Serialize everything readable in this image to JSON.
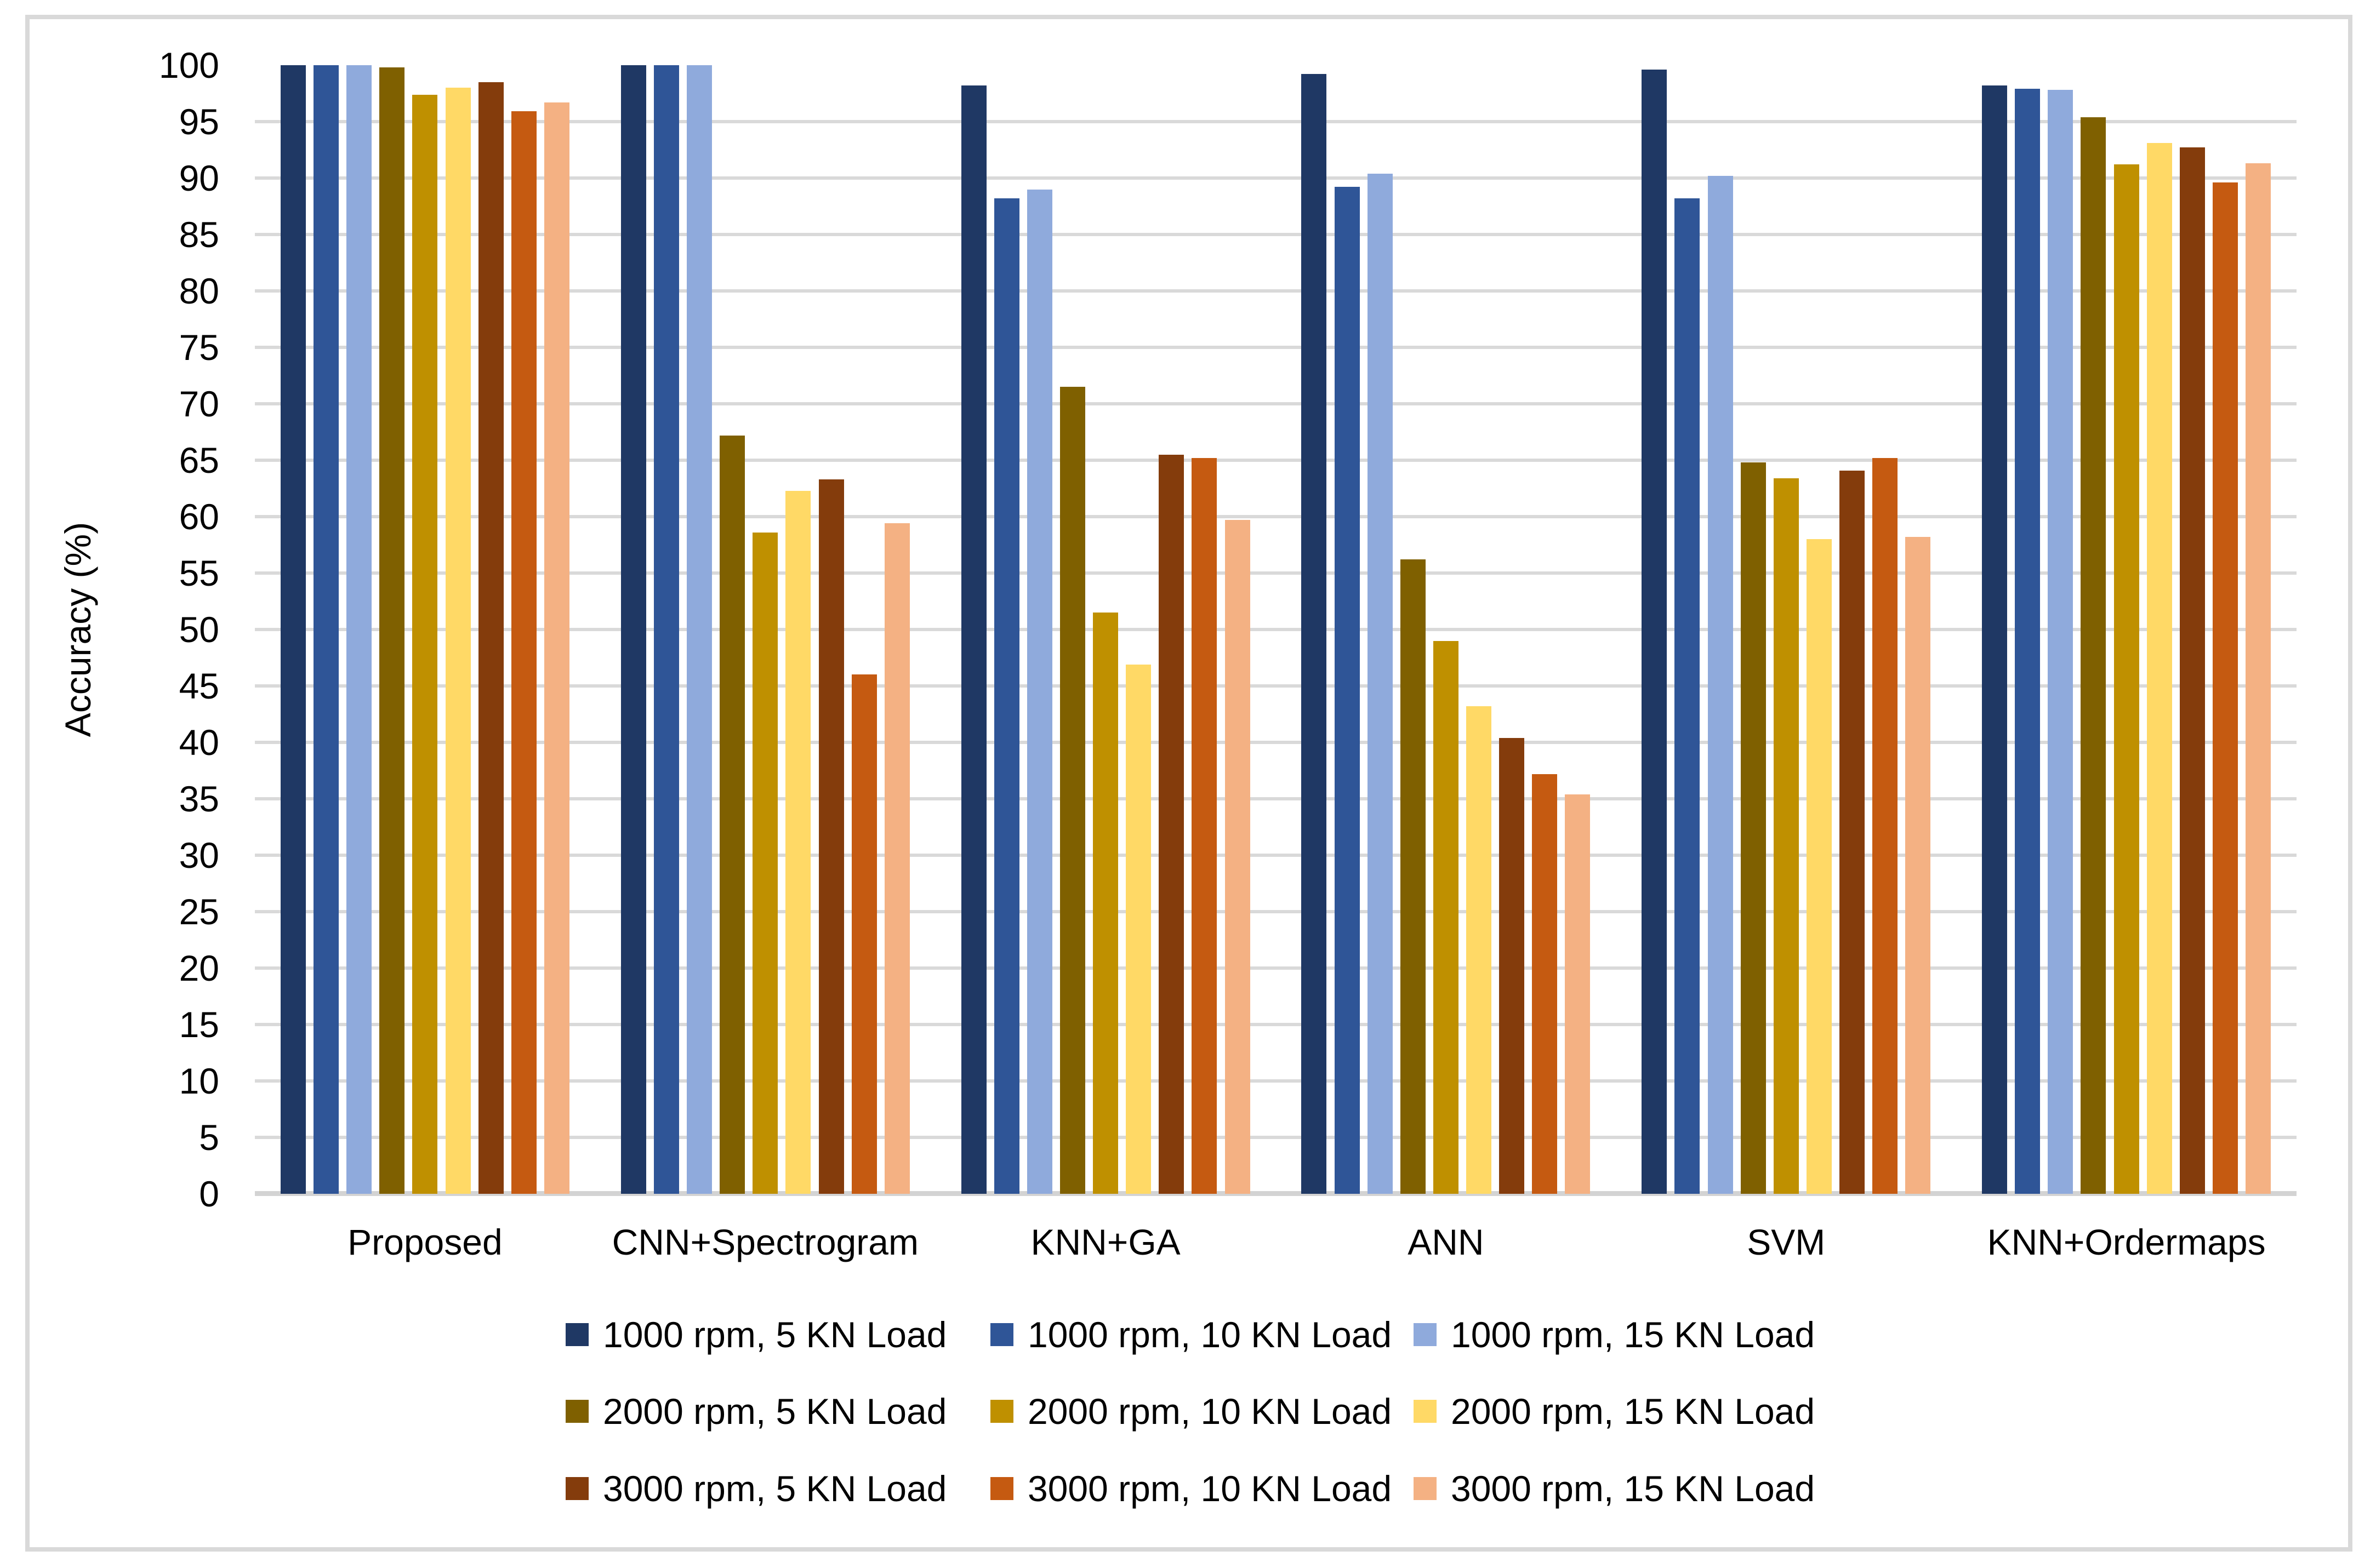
{
  "chart_data": {
    "type": "bar",
    "title": "",
    "xlabel": "",
    "ylabel": "Accuracy (%)",
    "ylim": [
      0,
      100
    ],
    "ytick_step": 5,
    "y_ticks": [
      0,
      5,
      10,
      15,
      20,
      25,
      30,
      35,
      40,
      45,
      50,
      55,
      60,
      65,
      70,
      75,
      80,
      85,
      90,
      95,
      100
    ],
    "grid": "horizontal major gridlines every 5 units from 0 to 95; no visible line at 100",
    "legend_position": "bottom, 3 columns x 3 rows",
    "categories": [
      "Proposed",
      "CNN+Spectrogram",
      "KNN+GA",
      "ANN",
      "SVM",
      "KNN+Ordermaps"
    ],
    "series": [
      {
        "name": "1000 rpm, 5 KN Load",
        "color": "#1f3864",
        "values": [
          100.0,
          100.0,
          98.2,
          99.2,
          99.6,
          98.2
        ]
      },
      {
        "name": "1000 rpm, 10 KN Load",
        "color": "#2f5597",
        "values": [
          100.0,
          100.0,
          88.2,
          89.2,
          88.2,
          97.9
        ]
      },
      {
        "name": "1000 rpm, 15 KN Load",
        "color": "#8faadc",
        "values": [
          100.0,
          100.0,
          89.0,
          90.4,
          90.2,
          97.8
        ]
      },
      {
        "name": "2000 rpm, 5 KN Load",
        "color": "#7f6000",
        "values": [
          99.8,
          67.2,
          71.5,
          56.2,
          64.8,
          95.4
        ]
      },
      {
        "name": "2000 rpm, 10 KN Load",
        "color": "#bf9000",
        "values": [
          97.4,
          58.6,
          51.5,
          49.0,
          63.4,
          91.2
        ]
      },
      {
        "name": "2000 rpm, 15 KN Load",
        "color": "#ffd966",
        "values": [
          98.0,
          62.3,
          46.9,
          43.2,
          58.0,
          93.1
        ]
      },
      {
        "name": "3000 rpm, 5 KN Load",
        "color": "#843c0c",
        "values": [
          98.5,
          63.3,
          65.5,
          40.4,
          64.1,
          92.7
        ]
      },
      {
        "name": "3000 rpm, 10 KN Load",
        "color": "#c55a11",
        "values": [
          95.9,
          46.0,
          65.2,
          37.2,
          65.2,
          89.6
        ]
      },
      {
        "name": "3000 rpm, 15 KN Load",
        "color": "#f4b183",
        "values": [
          96.7,
          59.4,
          59.7,
          35.4,
          58.2,
          91.3
        ]
      }
    ]
  },
  "style": {
    "background_color": "#ffffff",
    "frame_color": "#d9d9d9",
    "gridline_color": "#d9d9d9",
    "text_color": "#000000"
  }
}
